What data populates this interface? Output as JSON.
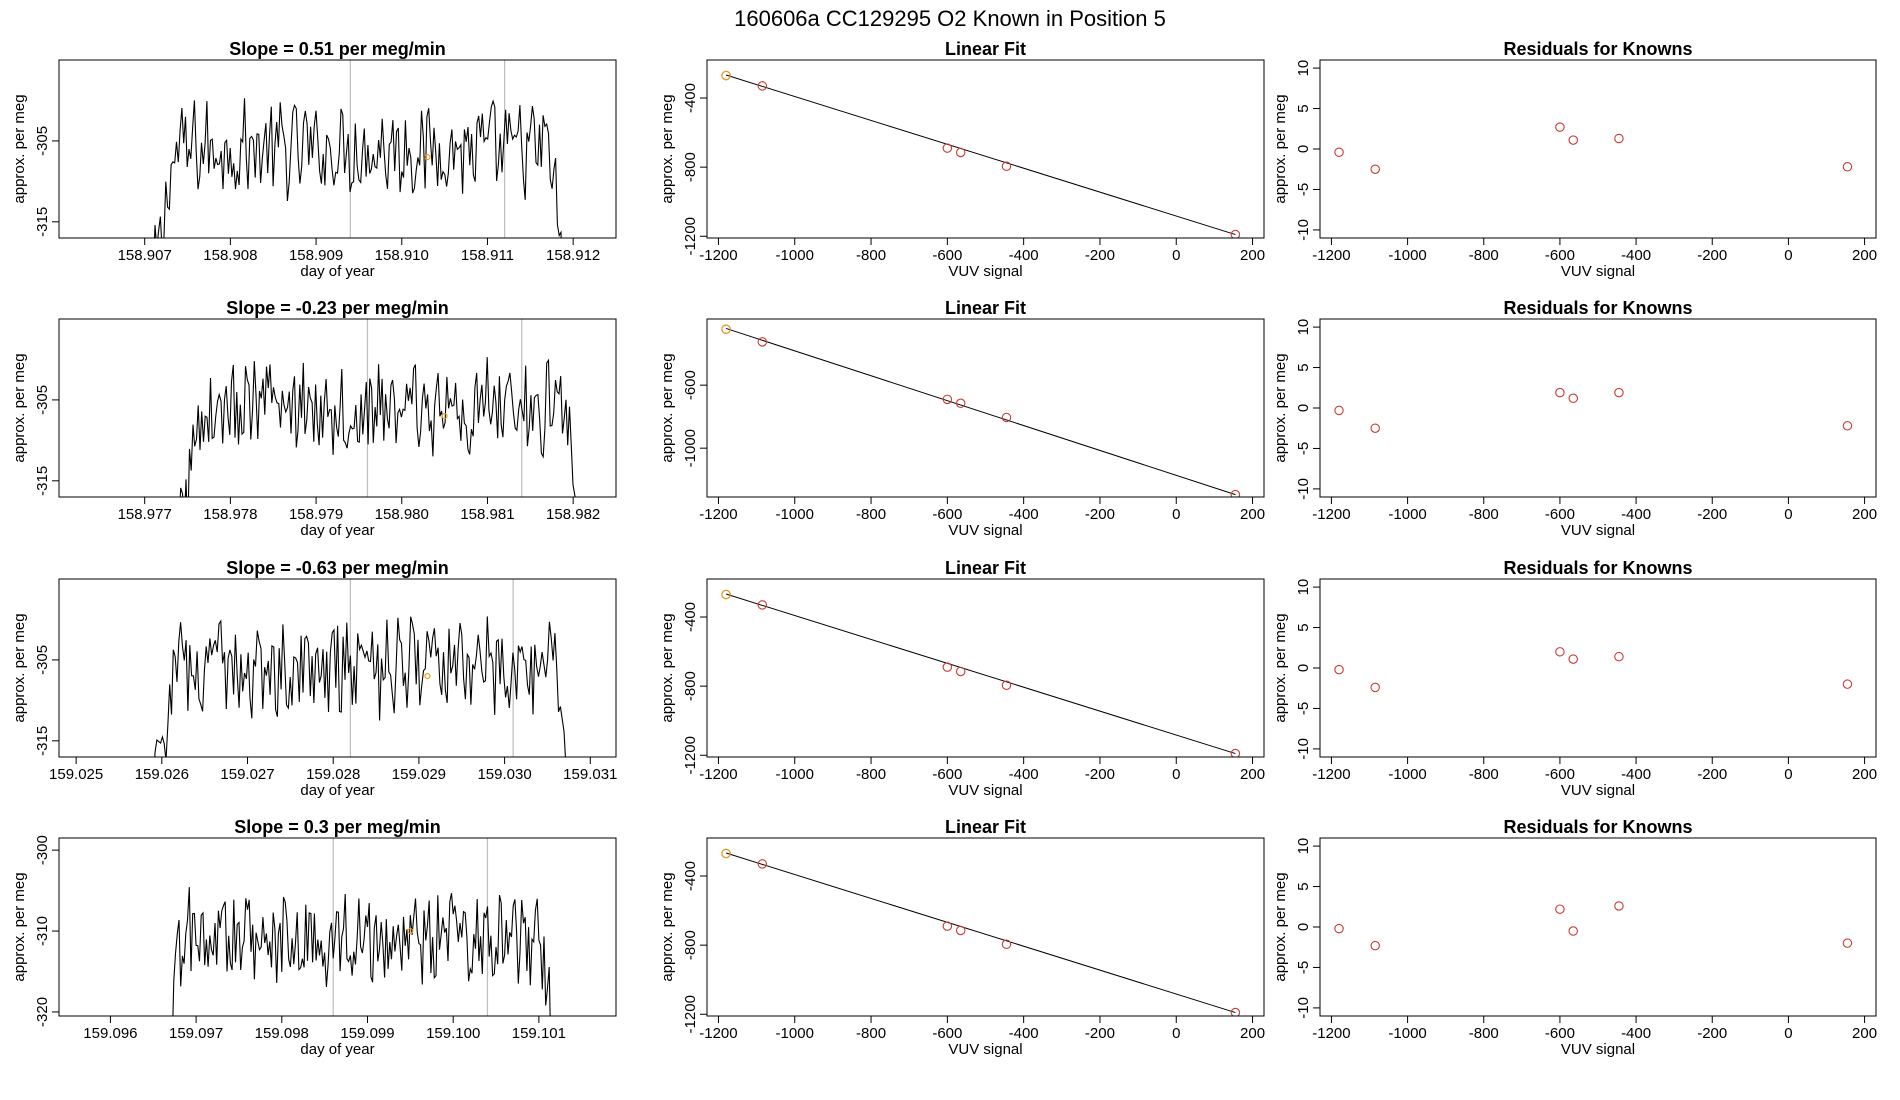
{
  "figure_title": "160606a      CC129295   O2 Known in Position  5",
  "chart_data": [
    {
      "type": "line",
      "title": "Slope =  0.51  per meg/min",
      "xlabel": "day of year",
      "ylabel": "approx. per meg",
      "xlim": [
        158.906,
        158.9125
      ],
      "ylim": [
        -317,
        -295
      ],
      "xticks": [
        "158.907",
        "158.908",
        "158.909",
        "158.910",
        "158.911",
        "158.912"
      ],
      "yticks": [
        "-305",
        "-315"
      ],
      "trace": {
        "start": 158.9071,
        "end": 158.9119,
        "base": -306,
        "spread": 5
      },
      "vlines": [
        158.9094,
        158.9112
      ],
      "highlight_point": [
        158.9103,
        -307
      ]
    },
    {
      "type": "scatter",
      "title": "Linear Fit",
      "xlabel": "VUV signal",
      "ylabel": "approx. per meg",
      "xlim": [
        -1230,
        230
      ],
      "ylim": [
        -1210,
        -180
      ],
      "xticks": [
        "-1200",
        "-1000",
        "-800",
        "-600",
        "-400",
        "-200",
        "0",
        "200"
      ],
      "yticks": [
        "-400",
        "-800",
        "-1200"
      ],
      "x": [
        -1180,
        -1085,
        -600,
        -565,
        -445,
        155
      ],
      "y": [
        -270,
        -330,
        -690,
        -715,
        -795,
        -1190
      ],
      "highlight_index": 0,
      "fit_line": [
        [
          -1180,
          -267
        ],
        [
          155,
          -1190
        ]
      ]
    },
    {
      "type": "scatter",
      "title": "Residuals for Knowns",
      "xlabel": "VUV signal",
      "ylabel": "approx. per meg",
      "xlim": [
        -1230,
        230
      ],
      "ylim": [
        -11,
        11
      ],
      "xticks": [
        "-1200",
        "-1000",
        "-800",
        "-600",
        "-400",
        "-200",
        "0",
        "200"
      ],
      "yticks": [
        "10",
        "5",
        "0",
        "-5",
        "-10"
      ],
      "x": [
        -1180,
        -1085,
        -600,
        -565,
        -445,
        155
      ],
      "y": [
        -0.4,
        -2.5,
        2.7,
        1.1,
        1.3,
        -2.2
      ]
    },
    {
      "type": "line",
      "title": "Slope =  -0.23  per meg/min",
      "xlabel": "day of year",
      "ylabel": "approx. per meg",
      "xlim": [
        158.976,
        158.9825
      ],
      "ylim": [
        -317,
        -295
      ],
      "xticks": [
        "158.977",
        "158.978",
        "158.979",
        "158.980",
        "158.981",
        "158.982"
      ],
      "yticks": [
        "-305",
        "-315"
      ],
      "trace": {
        "start": 158.9774,
        "end": 158.9821,
        "base": -306,
        "spread": 5
      },
      "vlines": [
        158.9796,
        158.9814
      ],
      "highlight_point": [
        158.9805,
        -307
      ]
    },
    {
      "type": "scatter",
      "title": "Linear Fit",
      "xlabel": "VUV signal",
      "ylabel": "approx. per meg",
      "xlim": [
        -1230,
        230
      ],
      "ylim": [
        -1310,
        -180
      ],
      "xticks": [
        "-1200",
        "-1000",
        "-800",
        "-600",
        "-400",
        "-200",
        "0",
        "200"
      ],
      "yticks": [
        "-600",
        "-1000"
      ],
      "x": [
        -1180,
        -1085,
        -600,
        -565,
        -445,
        155
      ],
      "y": [
        -245,
        -325,
        -690,
        -715,
        -805,
        -1295
      ],
      "highlight_index": 0,
      "fit_line": [
        [
          -1180,
          -240
        ],
        [
          155,
          -1295
        ]
      ]
    },
    {
      "type": "scatter",
      "title": "Residuals for Knowns",
      "xlabel": "VUV signal",
      "ylabel": "approx. per meg",
      "xlim": [
        -1230,
        230
      ],
      "ylim": [
        -11,
        11
      ],
      "xticks": [
        "-1200",
        "-1000",
        "-800",
        "-600",
        "-400",
        "-200",
        "0",
        "200"
      ],
      "yticks": [
        "10",
        "5",
        "0",
        "-5",
        "-10"
      ],
      "x": [
        -1180,
        -1085,
        -600,
        -565,
        -445,
        155
      ],
      "y": [
        -0.3,
        -2.5,
        1.9,
        1.2,
        1.9,
        -2.2
      ]
    },
    {
      "type": "line",
      "title": "Slope =  -0.63  per meg/min",
      "xlabel": "day of year",
      "ylabel": "approx. per meg",
      "xlim": [
        159.0248,
        159.0313
      ],
      "ylim": [
        -317,
        -295
      ],
      "xticks": [
        "159.025",
        "159.026",
        "159.027",
        "159.028",
        "159.029",
        "159.030",
        "159.031"
      ],
      "yticks": [
        "-305",
        "-315"
      ],
      "trace": {
        "start": 159.0259,
        "end": 159.0308,
        "base": -306,
        "spread": 5
      },
      "vlines": [
        159.0282,
        159.0301
      ],
      "highlight_point": [
        159.0291,
        -307
      ]
    },
    {
      "type": "scatter",
      "title": "Linear Fit",
      "xlabel": "VUV signal",
      "ylabel": "approx. per meg",
      "xlim": [
        -1230,
        230
      ],
      "ylim": [
        -1210,
        -180
      ],
      "xticks": [
        "-1200",
        "-1000",
        "-800",
        "-600",
        "-400",
        "-200",
        "0",
        "200"
      ],
      "yticks": [
        "-400",
        "-800",
        "-1200"
      ],
      "x": [
        -1180,
        -1085,
        -600,
        -565,
        -445,
        155
      ],
      "y": [
        -270,
        -330,
        -690,
        -715,
        -795,
        -1190
      ],
      "highlight_index": 0,
      "fit_line": [
        [
          -1180,
          -267
        ],
        [
          155,
          -1190
        ]
      ]
    },
    {
      "type": "scatter",
      "title": "Residuals for Knowns",
      "xlabel": "VUV signal",
      "ylabel": "approx. per meg",
      "xlim": [
        -1230,
        230
      ],
      "ylim": [
        -11,
        11
      ],
      "xticks": [
        "-1200",
        "-1000",
        "-800",
        "-600",
        "-400",
        "-200",
        "0",
        "200"
      ],
      "yticks": [
        "10",
        "5",
        "0",
        "-5",
        "-10"
      ],
      "x": [
        -1180,
        -1085,
        -600,
        -565,
        -445,
        155
      ],
      "y": [
        -0.2,
        -2.4,
        2.0,
        1.1,
        1.4,
        -2.0
      ]
    },
    {
      "type": "line",
      "title": "Slope =  0.3  per meg/min",
      "xlabel": "day of year",
      "ylabel": "approx. per meg",
      "xlim": [
        159.0954,
        159.1019
      ],
      "ylim": [
        -320.5,
        -298.5
      ],
      "xticks": [
        "159.096",
        "159.097",
        "159.098",
        "159.099",
        "159.100",
        "159.101"
      ],
      "yticks": [
        "-300",
        "-310",
        "-320"
      ],
      "trace": {
        "start": 159.0966,
        "end": 159.1012,
        "base": -311,
        "spread": 5
      },
      "vlines": [
        159.0986,
        159.1004
      ],
      "highlight_point": [
        159.0995,
        -310
      ]
    },
    {
      "type": "scatter",
      "title": "Linear Fit",
      "xlabel": "VUV signal",
      "ylabel": "approx. per meg",
      "xlim": [
        -1230,
        230
      ],
      "ylim": [
        -1210,
        -180
      ],
      "xticks": [
        "-1200",
        "-1000",
        "-800",
        "-600",
        "-400",
        "-200",
        "0",
        "200"
      ],
      "yticks": [
        "-400",
        "-800",
        "-1200"
      ],
      "x": [
        -1180,
        -1085,
        -600,
        -565,
        -445,
        155
      ],
      "y": [
        -270,
        -330,
        -690,
        -715,
        -795,
        -1190
      ],
      "highlight_index": 0,
      "fit_line": [
        [
          -1180,
          -267
        ],
        [
          155,
          -1190
        ]
      ]
    },
    {
      "type": "scatter",
      "title": "Residuals for Knowns",
      "xlabel": "VUV signal",
      "ylabel": "approx. per meg",
      "xlim": [
        -1230,
        230
      ],
      "ylim": [
        -11,
        11
      ],
      "xticks": [
        "-1200",
        "-1000",
        "-800",
        "-600",
        "-400",
        "-200",
        "0",
        "200"
      ],
      "yticks": [
        "10",
        "5",
        "0",
        "-5",
        "-10"
      ],
      "x": [
        -1180,
        -1085,
        -600,
        -565,
        -445,
        155
      ],
      "y": [
        -0.2,
        -2.3,
        2.2,
        -0.5,
        2.6,
        -2.0
      ]
    }
  ],
  "colors": {
    "trace": "#000000",
    "point": "#cd3a30",
    "highlight": "#e8a020",
    "vline": "#bdbdbd",
    "fit_line": "#000000"
  }
}
